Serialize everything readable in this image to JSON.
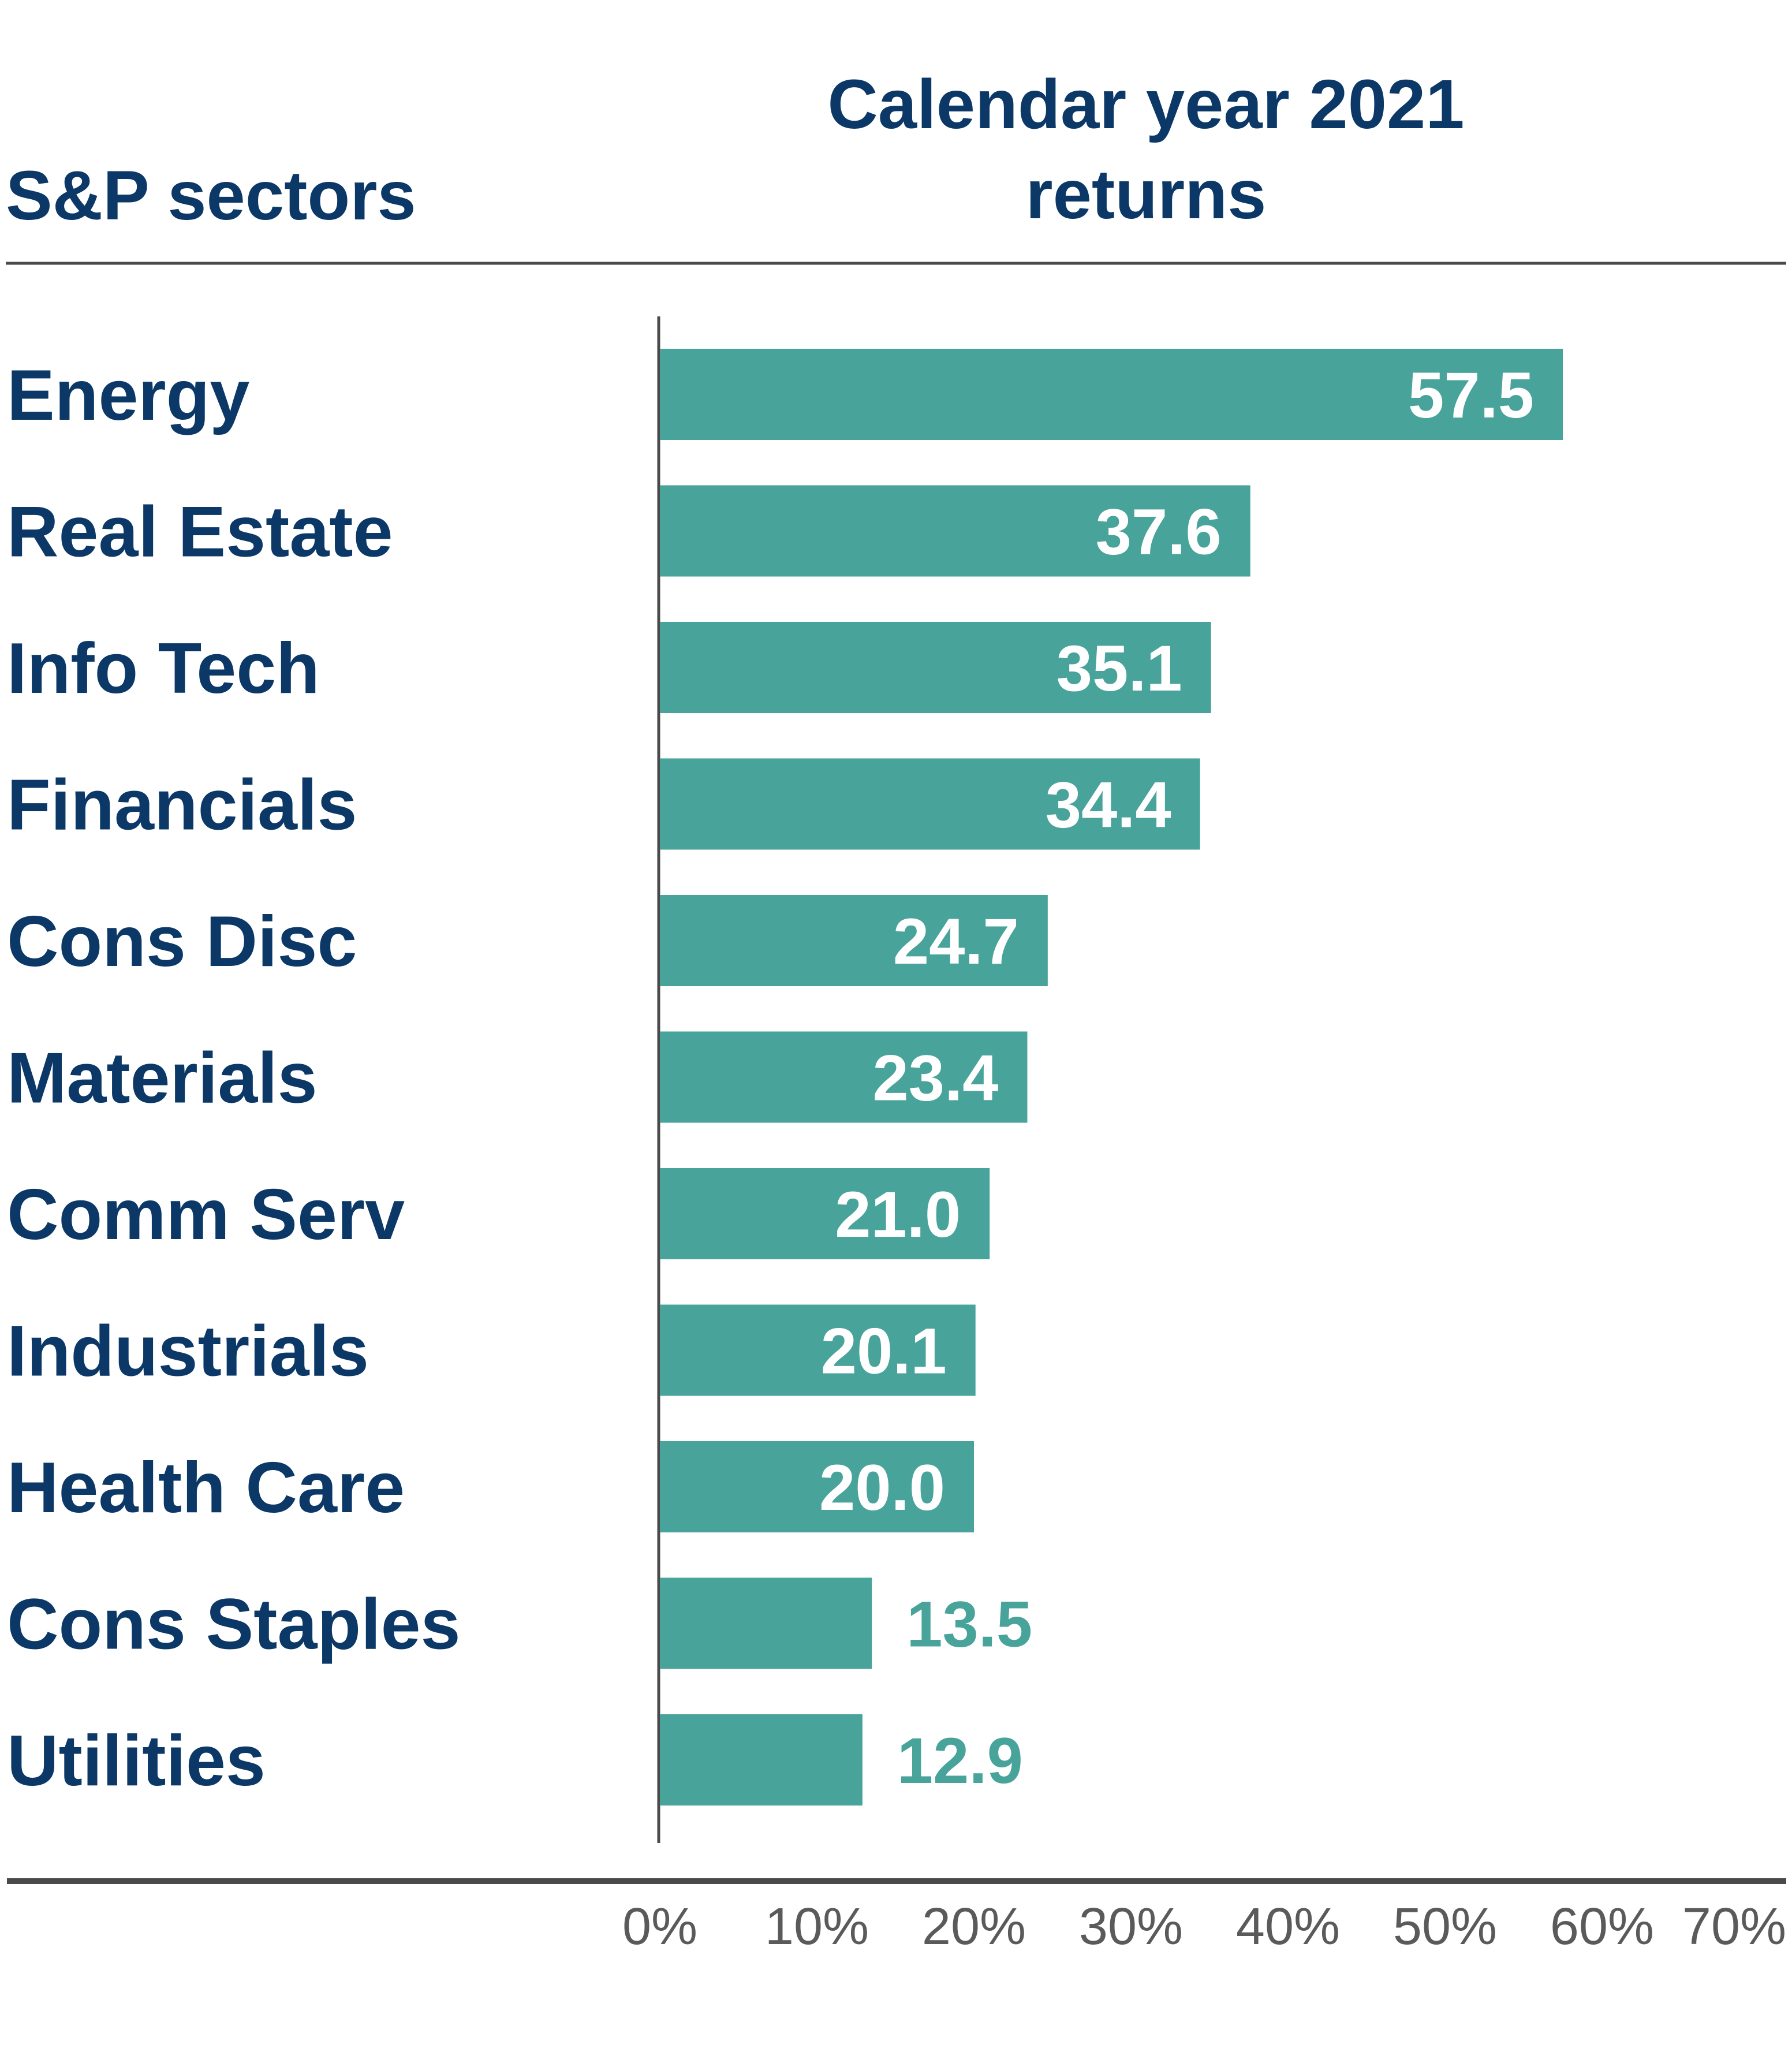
{
  "header": {
    "left_title": "S&P sectors",
    "right_title_line1": "Calendar year 2021",
    "right_title_line2": "returns"
  },
  "colors": {
    "bar": "#48a39a",
    "label_dark": "#0b3866",
    "axis_line": "#4a4a4a",
    "tick_text": "#5a5a5a",
    "value_inside": "#ffffff",
    "value_outside": "#48a39a"
  },
  "chart_data": {
    "type": "bar",
    "orientation": "horizontal",
    "categories": [
      "Energy",
      "Real Estate",
      "Info Tech",
      "Financials",
      "Cons Disc",
      "Materials",
      "Comm Serv",
      "Industrials",
      "Health Care",
      "Cons Staples",
      "Utilities"
    ],
    "values": [
      57.5,
      37.6,
      35.1,
      34.4,
      24.7,
      23.4,
      21.0,
      20.1,
      20.0,
      13.5,
      12.9
    ],
    "value_labels": [
      "57.5",
      "37.6",
      "35.1",
      "34.4",
      "24.7",
      "23.4",
      "21.0",
      "20.1",
      "20.0",
      "13.5",
      "12.9"
    ],
    "xlim": [
      0,
      70
    ],
    "x_ticks": [
      0,
      10,
      20,
      30,
      40,
      50,
      60,
      70
    ],
    "x_tick_labels": [
      "0%",
      "10%",
      "20%",
      "30%",
      "40%",
      "50%",
      "60%",
      "70%"
    ],
    "grid": false,
    "legend": "none"
  }
}
